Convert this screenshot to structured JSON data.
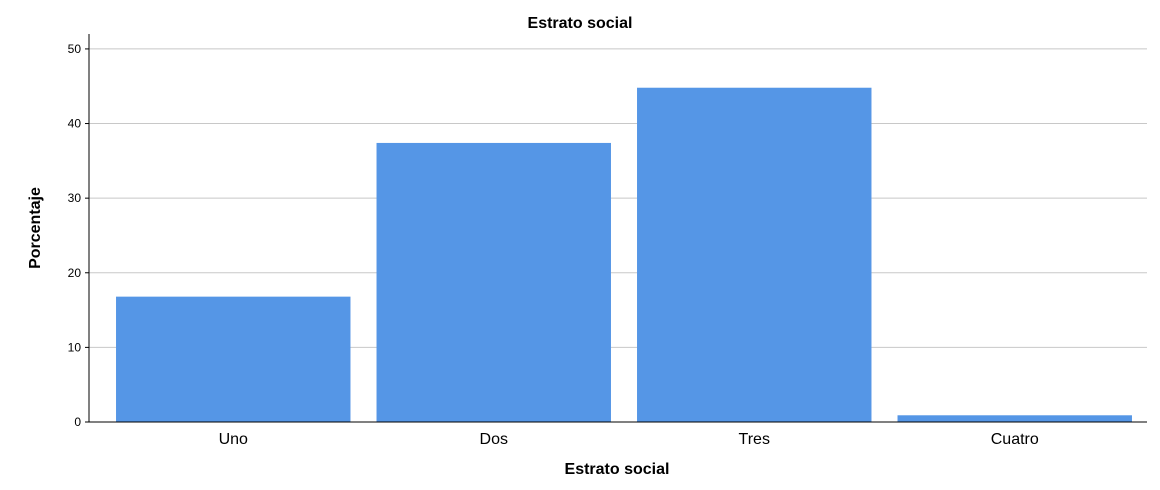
{
  "chart_data": {
    "type": "bar",
    "title": "Estrato social",
    "xlabel": "Estrato social",
    "ylabel": "Porcentaje",
    "categories": [
      "Uno",
      "Dos",
      "Tres",
      "Cuatro"
    ],
    "values": [
      16.8,
      37.4,
      44.8,
      0.9
    ],
    "ylim": [
      0,
      52
    ],
    "yticks": [
      "0",
      "10",
      "20",
      "30",
      "40",
      "50"
    ],
    "grid": true,
    "bar_color": "#5596E6",
    "legend": "none"
  }
}
